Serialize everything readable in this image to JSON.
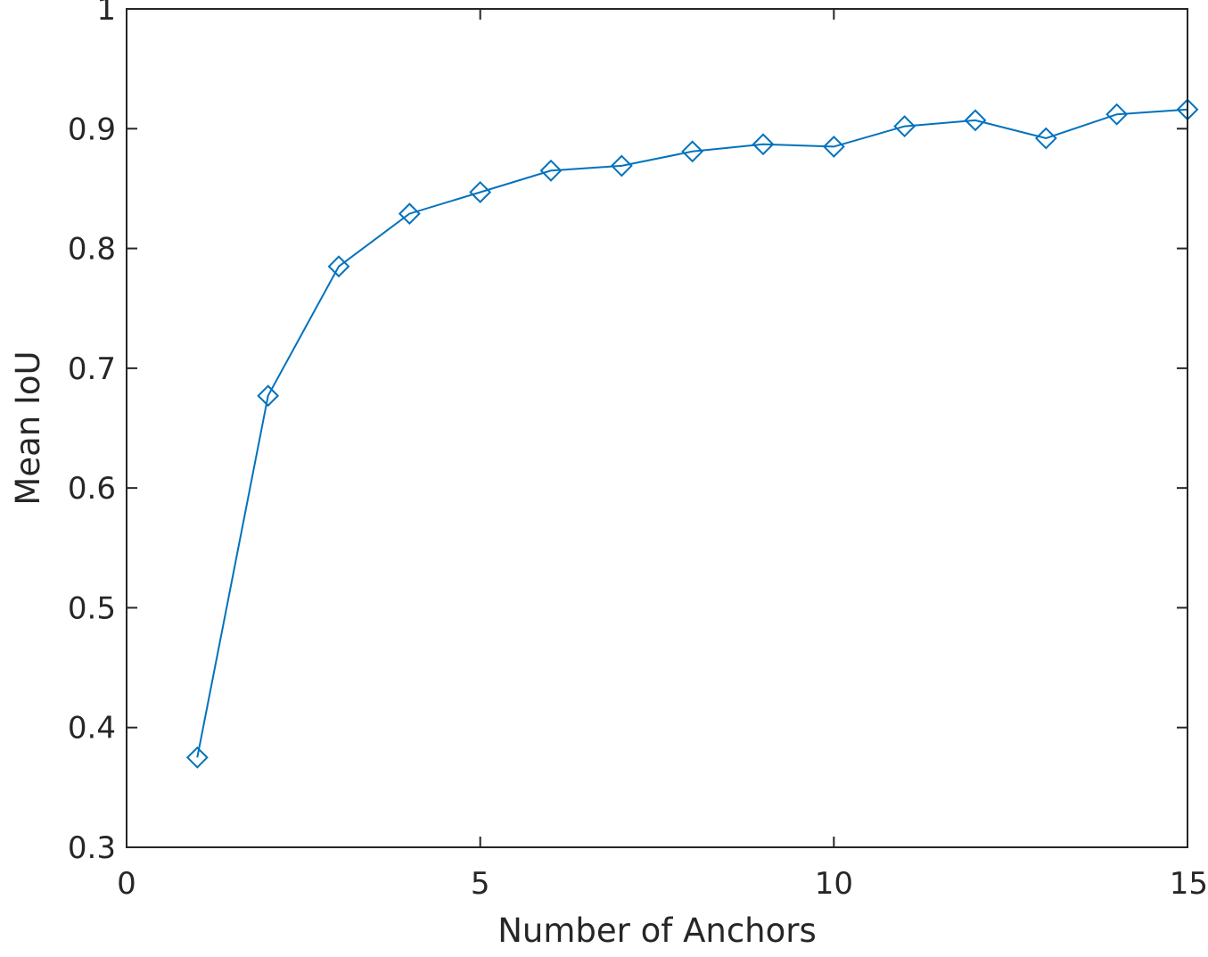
{
  "chart_data": {
    "type": "line",
    "title": "",
    "xlabel": "Number of Anchors",
    "ylabel": "Mean IoU",
    "xlim": [
      0,
      15
    ],
    "ylim": [
      0.3,
      1
    ],
    "xticks": [
      0,
      5,
      10,
      15
    ],
    "xtick_labels": [
      "0",
      "5",
      "10",
      "15"
    ],
    "yticks": [
      0.3,
      0.4,
      0.5,
      0.6,
      0.7,
      0.8,
      0.9,
      1
    ],
    "ytick_labels": [
      "0.3",
      "0.4",
      "0.5",
      "0.6",
      "0.7",
      "0.8",
      "0.9",
      "1"
    ],
    "grid": false,
    "legend": "none",
    "marker": "diamond",
    "color": "#0072BD",
    "series": [
      {
        "x": [
          1,
          2,
          3,
          4,
          5,
          6,
          7,
          8,
          9,
          10,
          11,
          12,
          13,
          14,
          15
        ],
        "values": [
          0.375,
          0.677,
          0.785,
          0.829,
          0.847,
          0.865,
          0.869,
          0.881,
          0.887,
          0.885,
          0.902,
          0.907,
          0.892,
          0.912,
          0.916
        ]
      }
    ]
  }
}
